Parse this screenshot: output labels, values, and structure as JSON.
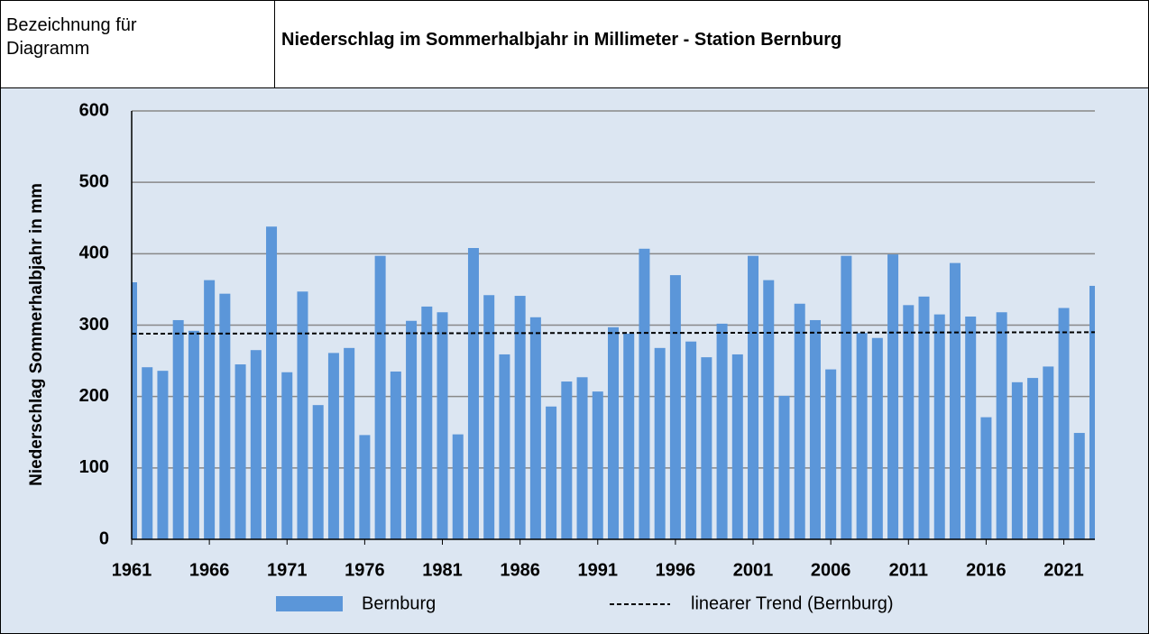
{
  "header": {
    "label": "Bezeichnung für Diagramm",
    "title": "Niederschlag im Sommerhalbjahr in Millimeter - Station Bernburg"
  },
  "chart_data": {
    "type": "bar",
    "ylabel": "Niederschlag Sommerhalbjahr in mm",
    "x": [
      1961,
      1962,
      1963,
      1964,
      1965,
      1966,
      1967,
      1968,
      1969,
      1970,
      1971,
      1972,
      1973,
      1974,
      1975,
      1976,
      1977,
      1978,
      1979,
      1980,
      1981,
      1982,
      1983,
      1984,
      1985,
      1986,
      1987,
      1988,
      1989,
      1990,
      1991,
      1992,
      1993,
      1994,
      1995,
      1996,
      1997,
      1998,
      1999,
      2000,
      2001,
      2002,
      2003,
      2004,
      2005,
      2006,
      2007,
      2008,
      2009,
      2010,
      2011,
      2012,
      2013,
      2014,
      2015,
      2016,
      2017,
      2018,
      2019,
      2020,
      2021,
      2022,
      2023
    ],
    "series": [
      {
        "name": "Bernburg",
        "color": "#5b96d9",
        "values": [
          360,
          241,
          236,
          307,
          292,
          363,
          344,
          245,
          265,
          438,
          234,
          347,
          188,
          261,
          268,
          146,
          397,
          235,
          306,
          326,
          318,
          147,
          408,
          342,
          259,
          341,
          311,
          186,
          221,
          227,
          207,
          297,
          288,
          407,
          268,
          370,
          277,
          255,
          302,
          259,
          397,
          363,
          201,
          330,
          307,
          238,
          397,
          289,
          282,
          399,
          328,
          340,
          315,
          387,
          312,
          171,
          318,
          220,
          226,
          242,
          324,
          149,
          355
        ]
      }
    ],
    "trend": {
      "name": "linearer Trend (Bernburg)",
      "x": [
        1961,
        2023
      ],
      "values": [
        288,
        290
      ]
    },
    "xlim": [
      1961,
      2023
    ],
    "xticks": [
      1961,
      1966,
      1971,
      1976,
      1981,
      1986,
      1991,
      1996,
      2001,
      2006,
      2011,
      2016,
      2021
    ],
    "ylim": [
      0,
      600
    ],
    "yticks": [
      0,
      100,
      200,
      300,
      400,
      500,
      600
    ],
    "grid": true
  }
}
